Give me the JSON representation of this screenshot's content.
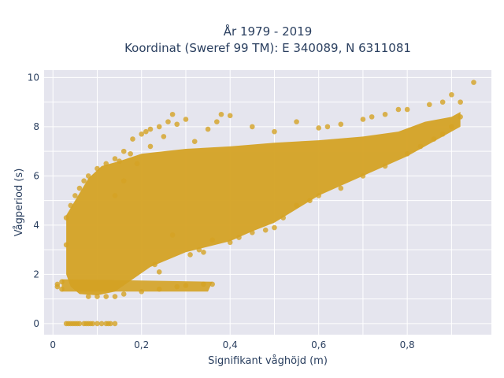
{
  "chart_data": {
    "type": "scatter",
    "title": [
      "År 1979 - 2019",
      "Koordinat (Sweref 99 TM): E 340089, N 6311081"
    ],
    "xlabel": "Signifikant våghöjd (m)",
    "ylabel": "Vågperiod (s)",
    "xlim": [
      -0.02,
      0.99
    ],
    "ylim": [
      -0.45,
      10.3
    ],
    "x_ticks": [
      0,
      0.2,
      0.4,
      0.6,
      0.8
    ],
    "x_tick_labels": [
      "0",
      "0,2",
      "0,4",
      "0,6",
      "0,8"
    ],
    "y_ticks": [
      0,
      2,
      4,
      6,
      8,
      10
    ],
    "y_tick_labels": [
      "0",
      "2",
      "4",
      "6",
      "8",
      "10"
    ],
    "grid": true,
    "marker_color": "#D4A224",
    "plot_bgcolor": "#E5E5EE",
    "series": [
      {
        "values": [
          [
            0.03,
            0
          ],
          [
            0.035,
            0
          ],
          [
            0.04,
            0
          ],
          [
            0.045,
            0
          ],
          [
            0.05,
            0
          ],
          [
            0.055,
            0
          ],
          [
            0.06,
            0
          ],
          [
            0.07,
            0
          ],
          [
            0.075,
            0
          ],
          [
            0.08,
            0
          ],
          [
            0.085,
            0
          ],
          [
            0.09,
            0
          ],
          [
            0.1,
            0
          ],
          [
            0.11,
            0
          ],
          [
            0.12,
            0
          ],
          [
            0.125,
            0
          ],
          [
            0.13,
            0
          ],
          [
            0.14,
            0
          ],
          [
            0.01,
            1.5
          ],
          [
            0.01,
            1.6
          ],
          [
            0.02,
            1.4
          ],
          [
            0.02,
            1.7
          ],
          [
            0.08,
            1.1
          ],
          [
            0.1,
            1.1
          ],
          [
            0.12,
            1.1
          ],
          [
            0.14,
            1.1
          ],
          [
            0.16,
            1.2
          ],
          [
            0.2,
            1.3
          ],
          [
            0.24,
            1.4
          ],
          [
            0.28,
            1.5
          ],
          [
            0.3,
            1.55
          ],
          [
            0.34,
            1.6
          ],
          [
            0.36,
            1.6
          ],
          [
            0.03,
            3.2
          ],
          [
            0.03,
            4.3
          ],
          [
            0.04,
            4.8
          ],
          [
            0.05,
            5.2
          ],
          [
            0.06,
            5.5
          ],
          [
            0.07,
            5.8
          ],
          [
            0.08,
            6.0
          ],
          [
            0.1,
            6.3
          ],
          [
            0.12,
            6.5
          ],
          [
            0.14,
            6.7
          ],
          [
            0.16,
            7.0
          ],
          [
            0.18,
            7.5
          ],
          [
            0.2,
            7.7
          ],
          [
            0.22,
            7.9
          ],
          [
            0.24,
            8.0
          ],
          [
            0.26,
            8.2
          ],
          [
            0.28,
            8.1
          ],
          [
            0.3,
            8.3
          ],
          [
            0.32,
            7.4
          ],
          [
            0.16,
            5.8
          ],
          [
            0.175,
            6.9
          ],
          [
            0.19,
            6.5
          ],
          [
            0.14,
            5.2
          ],
          [
            0.15,
            6.6
          ],
          [
            0.22,
            7.2
          ],
          [
            0.25,
            7.6
          ],
          [
            0.27,
            8.5
          ],
          [
            0.21,
            7.8
          ],
          [
            0.35,
            7.9
          ],
          [
            0.37,
            8.2
          ],
          [
            0.38,
            8.5
          ],
          [
            0.4,
            8.45
          ],
          [
            0.45,
            8.0
          ],
          [
            0.5,
            7.8
          ],
          [
            0.55,
            8.2
          ],
          [
            0.6,
            7.95
          ],
          [
            0.62,
            8.0
          ],
          [
            0.65,
            8.1
          ],
          [
            0.7,
            8.3
          ],
          [
            0.72,
            8.4
          ],
          [
            0.75,
            8.5
          ],
          [
            0.78,
            8.7
          ],
          [
            0.8,
            8.7
          ],
          [
            0.85,
            8.9
          ],
          [
            0.88,
            9.0
          ],
          [
            0.9,
            9.3
          ],
          [
            0.92,
            9.0
          ],
          [
            0.95,
            9.8
          ],
          [
            0.23,
            2.4
          ],
          [
            0.24,
            2.1
          ],
          [
            0.27,
            3.6
          ],
          [
            0.31,
            2.8
          ],
          [
            0.33,
            3.0
          ],
          [
            0.34,
            2.9
          ],
          [
            0.36,
            3.4
          ],
          [
            0.4,
            3.3
          ],
          [
            0.42,
            3.5
          ],
          [
            0.45,
            3.7
          ],
          [
            0.48,
            3.8
          ],
          [
            0.5,
            3.9
          ],
          [
            0.52,
            4.3
          ],
          [
            0.55,
            4.8
          ],
          [
            0.58,
            5.0
          ],
          [
            0.6,
            5.2
          ],
          [
            0.65,
            5.5
          ],
          [
            0.7,
            6.0
          ],
          [
            0.75,
            6.4
          ],
          [
            0.8,
            6.9
          ],
          [
            0.83,
            7.2
          ],
          [
            0.86,
            7.5
          ],
          [
            0.88,
            7.7
          ],
          [
            0.9,
            8.0
          ],
          [
            0.92,
            8.4
          ]
        ]
      }
    ]
  }
}
